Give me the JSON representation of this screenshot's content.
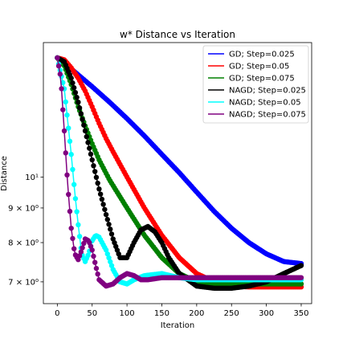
{
  "chart_data": {
    "type": "line",
    "title": "w* Distance vs Iteration",
    "xlabel": "Iteration",
    "ylabel": "Distance",
    "yscale": "log",
    "xlim": [
      -20,
      365
    ],
    "ylim": [
      6.5,
      15.8
    ],
    "xticks": [
      0,
      50,
      100,
      150,
      200,
      250,
      300,
      350
    ],
    "yticks": [
      {
        "value": 7,
        "label": "7 × 10⁰"
      },
      {
        "value": 8,
        "label": "8 × 10⁰"
      },
      {
        "value": 9,
        "label": "9 × 10⁰"
      },
      {
        "value": 10,
        "label": "10¹"
      }
    ],
    "grid": false,
    "legend_position": "top-right",
    "series": [
      {
        "name": "GD; Step=0.025",
        "color": "#0000ff",
        "x": [
          0,
          25,
          50,
          75,
          100,
          125,
          150,
          175,
          200,
          225,
          250,
          275,
          300,
          325,
          350
        ],
        "y": [
          15.0,
          14.3,
          13.6,
          12.9,
          12.2,
          11.5,
          10.8,
          10.15,
          9.5,
          8.9,
          8.4,
          8.0,
          7.7,
          7.5,
          7.45
        ]
      },
      {
        "name": "GD; Step=0.05",
        "color": "#ff0000",
        "x": [
          0,
          10,
          20,
          30,
          40,
          50,
          60,
          70,
          80,
          100,
          125,
          150,
          175,
          200,
          225,
          250,
          275,
          300,
          350
        ],
        "y": [
          15.0,
          14.9,
          14.5,
          14.0,
          13.4,
          12.7,
          12.0,
          11.4,
          10.9,
          10.0,
          9.0,
          8.2,
          7.6,
          7.2,
          7.0,
          6.9,
          6.88,
          6.88,
          6.88
        ]
      },
      {
        "name": "GD; Step=0.075",
        "color": "#008000",
        "x": [
          0,
          10,
          20,
          30,
          40,
          50,
          60,
          75,
          100,
          125,
          150,
          175,
          200,
          225,
          250,
          300,
          350
        ],
        "y": [
          15.0,
          14.6,
          13.7,
          12.7,
          11.9,
          11.2,
          10.6,
          9.9,
          9.0,
          8.2,
          7.6,
          7.2,
          7.0,
          6.95,
          6.95,
          6.95,
          6.95
        ]
      },
      {
        "name": "NAGD; Step=0.025",
        "color": "#000000",
        "x": [
          0,
          10,
          20,
          30,
          40,
          50,
          60,
          70,
          80,
          90,
          100,
          110,
          120,
          130,
          140,
          150,
          160,
          175,
          200,
          225,
          250,
          275,
          300,
          325,
          350
        ],
        "y": [
          15.0,
          14.8,
          14.0,
          12.9,
          11.7,
          10.6,
          9.6,
          8.8,
          8.1,
          7.6,
          7.6,
          8.0,
          8.35,
          8.45,
          8.3,
          8.0,
          7.6,
          7.2,
          6.9,
          6.85,
          6.85,
          6.9,
          7.0,
          7.2,
          7.4
        ]
      },
      {
        "name": "NAGD; Step=0.05",
        "color": "#00ffff",
        "x": [
          0,
          10,
          20,
          25,
          30,
          35,
          40,
          45,
          50,
          55,
          60,
          70,
          80,
          90,
          100,
          110,
          125,
          150,
          175,
          200,
          250,
          300,
          350
        ],
        "y": [
          15.0,
          13.5,
          10.8,
          9.5,
          8.5,
          7.7,
          7.5,
          7.7,
          8.05,
          8.2,
          8.15,
          7.8,
          7.3,
          7.0,
          6.95,
          7.05,
          7.15,
          7.2,
          7.1,
          7.05,
          7.05,
          7.05,
          7.05
        ]
      },
      {
        "name": "NAGD; Step=0.075",
        "color": "#800080",
        "x": [
          0,
          5,
          10,
          15,
          20,
          25,
          30,
          35,
          40,
          45,
          50,
          55,
          60,
          70,
          80,
          90,
          100,
          110,
          120,
          130,
          150,
          175,
          200,
          250,
          300,
          350
        ],
        "y": [
          15.0,
          14.0,
          11.7,
          9.7,
          8.4,
          7.7,
          7.55,
          7.8,
          8.1,
          8.05,
          7.8,
          7.4,
          7.05,
          6.9,
          6.95,
          7.1,
          7.2,
          7.15,
          7.05,
          7.05,
          7.1,
          7.1,
          7.1,
          7.1,
          7.1,
          7.1
        ]
      }
    ]
  }
}
